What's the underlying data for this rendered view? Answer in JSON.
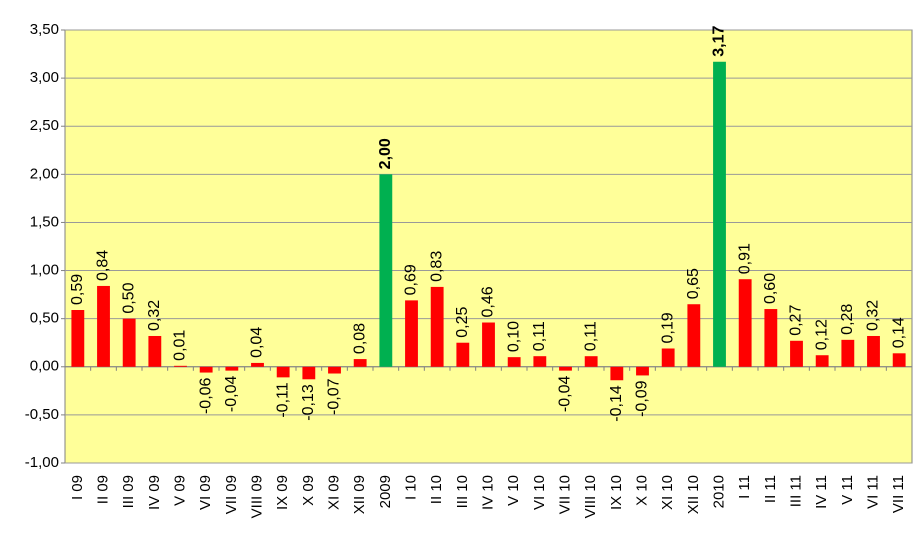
{
  "chart_data": {
    "type": "bar",
    "categories": [
      "I 09",
      "II 09",
      "III 09",
      "IV 09",
      "V 09",
      "VI 09",
      "VII 09",
      "VIII 09",
      "IX 09",
      "X 09",
      "XI 09",
      "XII 09",
      "2009",
      "I 10",
      "II 10",
      "III 10",
      "IV 10",
      "V 10",
      "VI 10",
      "VII 10",
      "VIII 10",
      "IX 10",
      "X 10",
      "XI 10",
      "XII 10",
      "2010",
      "I 11",
      "II 11",
      "III 11",
      "IV 11",
      "V 11",
      "VI 11",
      "VII 11"
    ],
    "values": [
      0.59,
      0.84,
      0.5,
      0.32,
      0.01,
      -0.06,
      -0.04,
      0.04,
      -0.11,
      -0.13,
      -0.07,
      0.08,
      2.0,
      0.69,
      0.83,
      0.25,
      0.46,
      0.1,
      0.11,
      -0.04,
      0.11,
      -0.14,
      -0.09,
      0.19,
      0.65,
      3.17,
      0.91,
      0.6,
      0.27,
      0.12,
      0.28,
      0.32,
      0.14
    ],
    "value_labels": [
      "0,59",
      "0,84",
      "0,50",
      "0,32",
      "0,01",
      "-0,06",
      "-0,04",
      "0,04",
      "-0,11",
      "-0,13",
      "-0,07",
      "0,08",
      "2,00",
      "0,69",
      "0,83",
      "0,25",
      "0,46",
      "0,10",
      "0,11",
      "-0,04",
      "0,11",
      "-0,14",
      "-0,09",
      "0,19",
      "0,65",
      "3,17",
      "0,91",
      "0,60",
      "0,27",
      "0,12",
      "0,28",
      "0,32",
      "0,14"
    ],
    "colors": [
      "#ff0000",
      "#ff0000",
      "#ff0000",
      "#ff0000",
      "#ff0000",
      "#ff0000",
      "#ff0000",
      "#ff0000",
      "#ff0000",
      "#ff0000",
      "#ff0000",
      "#ff0000",
      "#00b050",
      "#ff0000",
      "#ff0000",
      "#ff0000",
      "#ff0000",
      "#ff0000",
      "#ff0000",
      "#ff0000",
      "#ff0000",
      "#ff0000",
      "#ff0000",
      "#ff0000",
      "#ff0000",
      "#00b050",
      "#ff0000",
      "#ff0000",
      "#ff0000",
      "#ff0000",
      "#ff0000",
      "#ff0000",
      "#ff0000"
    ],
    "ylim": [
      -1,
      3.5
    ],
    "yticks": [
      {
        "value": -1,
        "label": "-1,00"
      },
      {
        "value": -0.5,
        "label": "-0,50"
      },
      {
        "value": 0,
        "label": "0,00"
      },
      {
        "value": 0.5,
        "label": "0,50"
      },
      {
        "value": 1,
        "label": "1,00"
      },
      {
        "value": 1.5,
        "label": "1,50"
      },
      {
        "value": 2,
        "label": "2,00"
      },
      {
        "value": 2.5,
        "label": "2,50"
      },
      {
        "value": 3,
        "label": "3,00"
      },
      {
        "value": 3.5,
        "label": "3,50"
      }
    ],
    "grid": true
  }
}
